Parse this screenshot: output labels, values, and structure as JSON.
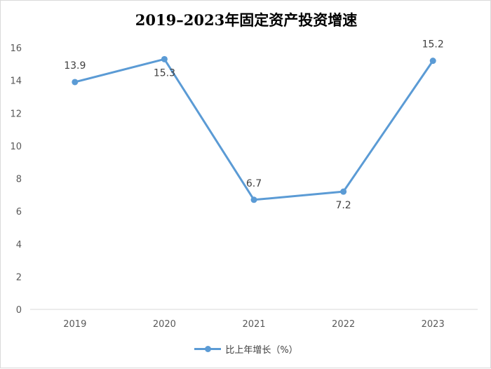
{
  "chart_data": {
    "type": "line",
    "title": "2019–2023年固定资产投资增速",
    "categories": [
      "2019",
      "2020",
      "2021",
      "2022",
      "2023"
    ],
    "series": [
      {
        "name": "比上年增长（%）",
        "values": [
          13.9,
          15.3,
          6.7,
          7.2,
          15.2
        ]
      }
    ],
    "data_labels": [
      "13.9",
      "15.3",
      "6.7",
      "7.2",
      "15.2"
    ],
    "ylim": [
      0,
      16
    ],
    "y_ticks": [
      "0",
      "2",
      "4",
      "6",
      "8",
      "10",
      "12",
      "14",
      "16"
    ],
    "grid": false,
    "legend_position": "bottom",
    "line_color": "#5b9bd5"
  }
}
